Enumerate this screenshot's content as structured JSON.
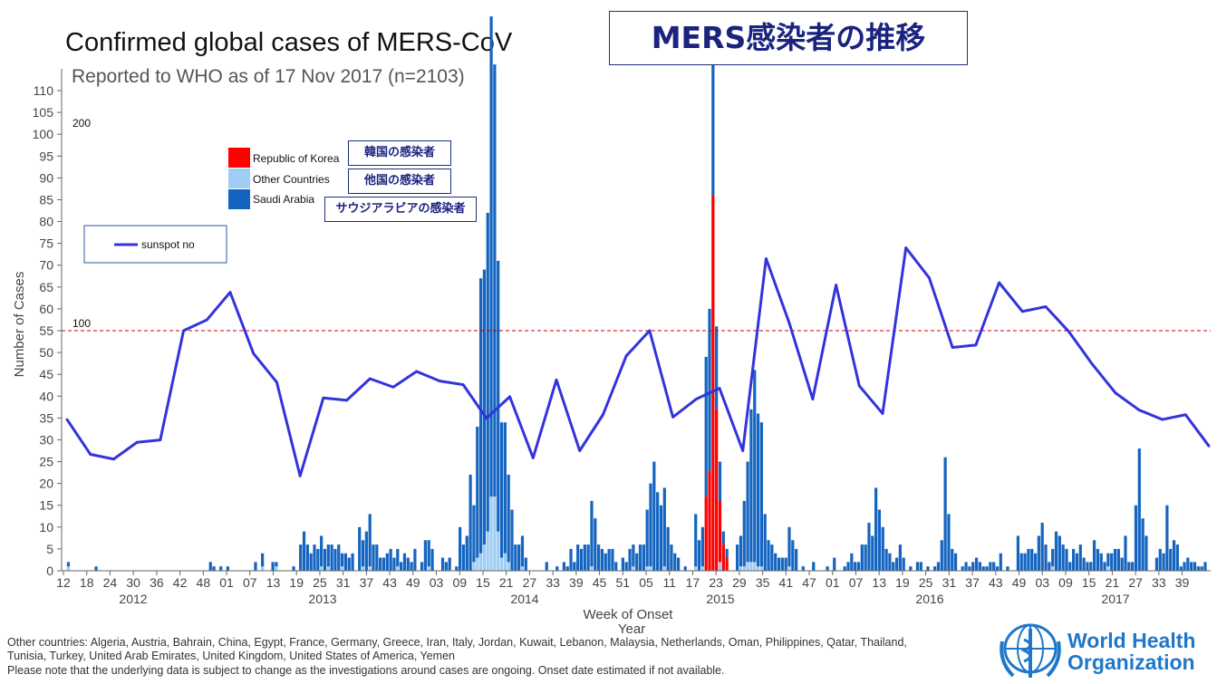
{
  "header": {
    "title": "Confirmed global cases of MERS-CoV",
    "subtitle": "Reported to WHO as of 17 Nov 2017 (n=2103)",
    "jp_title": "MERS感染者の推移"
  },
  "legend": {
    "items": [
      {
        "label": "Republic of Korea",
        "color": "#ff0000",
        "jp": "韓国の感染者"
      },
      {
        "label": "Other Countries",
        "color": "#9fcdf3",
        "jp": "他国の感染者"
      },
      {
        "label": "Saudi Arabia",
        "color": "#1565c0",
        "jp": "サウジアラビアの感染者"
      }
    ],
    "line_label": "sunspot no",
    "line_color": "#3333dd"
  },
  "footnotes": {
    "line1": "Other countries: Algeria, Austria, Bahrain, China, Egypt, France, Germany, Greece, Iran, Italy, Jordan, Kuwait, Lebanon, Malaysia, Netherlands, Oman, Philippines, Qatar, Thailand,",
    "line2": "Tunisia, Turkey, United Arab Emirates, United Kingdom, United States of America, Yemen",
    "line3": "Please note that the underlying data is subject to change as the investigations around cases are ongoing. Onset date estimated if not available."
  },
  "logo": {
    "line1": "World Health",
    "line2": "Organization"
  },
  "chart_data": {
    "type": "bar",
    "xlabel": "Week of Onset",
    "xlabel2": "Year",
    "ylabel": "Number of Cases",
    "ylim": [
      0,
      110
    ],
    "yticks": [
      0,
      5,
      10,
      15,
      20,
      25,
      30,
      35,
      40,
      45,
      50,
      55,
      60,
      65,
      70,
      75,
      80,
      85,
      90,
      95,
      100,
      105,
      110
    ],
    "secondary_axis_labels": [
      {
        "text": "200",
        "value": 200
      },
      {
        "text": "100",
        "value": 100
      }
    ],
    "secondary_ylim": [
      0,
      200
    ],
    "reference_line": {
      "secondary_value": 100,
      "color": "#cc0000",
      "style": "dashed"
    },
    "week_tick_labels": [
      "12",
      "18",
      "24",
      "30",
      "36",
      "42",
      "48",
      "01",
      "07",
      "13",
      "19",
      "25",
      "31",
      "37",
      "43",
      "49",
      "03",
      "09",
      "15",
      "21",
      "27",
      "33",
      "39",
      "45",
      "51",
      "05",
      "11",
      "17",
      "23",
      "29",
      "35",
      "41",
      "47",
      "01",
      "07",
      "13",
      "19",
      "25",
      "31",
      "37",
      "43",
      "49",
      "03",
      "09",
      "15",
      "21",
      "27",
      "33",
      "39"
    ],
    "year_labels": [
      "2012",
      "2013",
      "2014",
      "2015",
      "2016",
      "2017"
    ],
    "series": [
      {
        "name": "Saudi Arabia",
        "color": "#1565c0",
        "values": [
          0,
          1,
          0,
          0,
          0,
          0,
          0,
          0,
          0,
          1,
          0,
          0,
          0,
          0,
          0,
          0,
          0,
          0,
          0,
          0,
          0,
          0,
          0,
          0,
          0,
          0,
          0,
          0,
          0,
          0,
          0,
          0,
          0,
          0,
          0,
          0,
          0,
          0,
          0,
          0,
          0,
          0,
          2,
          1,
          0,
          1,
          0,
          1,
          0,
          0,
          0,
          0,
          0,
          0,
          0,
          2,
          0,
          3,
          0,
          0,
          2,
          1,
          0,
          0,
          0,
          0,
          1,
          0,
          6,
          9,
          6,
          4,
          6,
          5,
          7,
          5,
          5,
          6,
          5,
          6,
          3,
          4,
          3,
          4,
          0,
          10,
          6,
          9,
          12,
          6,
          6,
          3,
          3,
          4,
          5,
          3,
          4,
          2,
          4,
          3,
          2,
          5,
          0,
          2,
          7,
          6,
          5,
          0,
          0,
          3,
          2,
          3,
          0,
          1,
          10,
          6,
          8,
          22,
          13,
          30,
          63,
          63,
          73,
          110,
          99,
          62,
          31,
          30,
          20,
          14,
          6,
          6,
          7,
          3,
          0,
          0,
          0,
          0,
          0,
          2,
          0,
          0,
          1,
          0,
          2,
          1,
          5,
          2,
          6,
          5,
          6,
          6,
          15,
          12,
          6,
          5,
          4,
          5,
          5,
          2,
          0,
          3,
          2,
          5,
          5,
          4,
          6,
          6,
          13,
          19,
          25,
          18,
          15,
          18,
          10,
          6,
          4,
          3,
          0,
          1,
          0,
          0,
          12,
          7,
          9,
          32,
          37,
          30,
          19,
          9,
          3,
          2,
          0,
          0,
          6,
          7,
          15,
          23,
          35,
          44,
          35,
          33,
          13,
          7,
          6,
          4,
          3,
          3,
          3,
          9,
          7,
          5,
          0,
          1,
          0,
          0,
          2,
          0,
          0,
          0,
          1,
          0,
          3,
          0,
          0,
          1,
          2,
          4,
          2,
          2,
          6,
          6,
          11,
          8,
          19,
          14,
          10,
          5,
          4,
          2,
          3,
          6,
          3,
          0,
          1,
          0,
          2,
          2,
          0,
          1,
          0,
          1,
          2,
          7,
          26,
          13,
          5,
          4,
          0,
          1,
          2,
          1,
          2,
          3,
          2,
          1,
          1,
          2,
          2,
          1,
          4,
          0,
          1,
          0,
          0,
          8,
          4,
          4,
          5,
          5,
          4,
          8,
          11,
          6,
          2,
          4,
          9,
          8,
          6,
          5,
          2,
          5,
          4,
          6,
          3,
          2,
          2,
          7,
          5,
          4,
          2,
          3,
          4,
          5,
          5,
          3,
          8,
          2,
          2,
          15,
          28,
          12,
          8,
          0,
          0,
          3,
          5,
          4,
          15,
          5,
          7,
          6,
          1,
          2,
          3,
          2,
          2,
          1,
          1,
          2,
          0
        ]
      },
      {
        "name": "Other Countries",
        "color": "#9fcdf3",
        "values": [
          0,
          1,
          0,
          0,
          0,
          0,
          0,
          0,
          0,
          0,
          0,
          0,
          0,
          0,
          0,
          0,
          0,
          0,
          0,
          0,
          0,
          0,
          0,
          0,
          0,
          0,
          0,
          0,
          0,
          0,
          0,
          0,
          0,
          0,
          0,
          0,
          0,
          0,
          0,
          0,
          0,
          0,
          0,
          0,
          0,
          0,
          0,
          0,
          0,
          0,
          0,
          0,
          0,
          0,
          0,
          0,
          0,
          1,
          0,
          0,
          0,
          1,
          0,
          0,
          0,
          0,
          0,
          0,
          0,
          0,
          0,
          0,
          0,
          0,
          1,
          0,
          1,
          0,
          0,
          0,
          1,
          0,
          0,
          0,
          0,
          0,
          1,
          0,
          1,
          0,
          0,
          0,
          0,
          0,
          0,
          0,
          1,
          0,
          0,
          0,
          0,
          0,
          0,
          0,
          0,
          1,
          0,
          0,
          0,
          0,
          0,
          0,
          0,
          0,
          0,
          0,
          0,
          0,
          2,
          3,
          4,
          6,
          9,
          17,
          17,
          9,
          3,
          4,
          2,
          0,
          0,
          0,
          1,
          0,
          0,
          0,
          0,
          0,
          0,
          0,
          0,
          0,
          0,
          0,
          0,
          0,
          0,
          0,
          0,
          0,
          0,
          0,
          1,
          0,
          0,
          0,
          0,
          0,
          0,
          0,
          0,
          0,
          0,
          0,
          1,
          0,
          0,
          0,
          1,
          1,
          0,
          0,
          0,
          1,
          0,
          0,
          0,
          0,
          0,
          0,
          0,
          0,
          1,
          0,
          1,
          0,
          0,
          0,
          0,
          2,
          0,
          0,
          0,
          0,
          0,
          1,
          1,
          2,
          2,
          2,
          1,
          1,
          0,
          0,
          0,
          0,
          0,
          0,
          0,
          1,
          0,
          0,
          0,
          0,
          0,
          0,
          0,
          0,
          0,
          0,
          0,
          0,
          0,
          0,
          0,
          0,
          0,
          0,
          0,
          0,
          0,
          0,
          0,
          0,
          0,
          0,
          0,
          0,
          0,
          0,
          0,
          0,
          0,
          0,
          0,
          0,
          0,
          0,
          0,
          0,
          0,
          0,
          0,
          0,
          0,
          0,
          0,
          0,
          0,
          0,
          0,
          0,
          0,
          0,
          0,
          0,
          0,
          0,
          0,
          0,
          0,
          0,
          0,
          0,
          0,
          0,
          0,
          0,
          0,
          0,
          0,
          0,
          0,
          0,
          0,
          1,
          0,
          0,
          0,
          0,
          0,
          0,
          0,
          0,
          0,
          0,
          0,
          0,
          0,
          0,
          0,
          1,
          0,
          0,
          0,
          0,
          0,
          0,
          0,
          0,
          0,
          0,
          0,
          0,
          0,
          0,
          0,
          0,
          0,
          0,
          0,
          0,
          0,
          0,
          0,
          0,
          0,
          0,
          0,
          0,
          0,
          0,
          0,
          0,
          0,
          0,
          0,
          0,
          0,
          0,
          0,
          0,
          0,
          0,
          0,
          0
        ]
      },
      {
        "name": "Republic of Korea",
        "color": "#ff0000",
        "values": [
          0,
          0,
          0,
          0,
          0,
          0,
          0,
          0,
          0,
          0,
          0,
          0,
          0,
          0,
          0,
          0,
          0,
          0,
          0,
          0,
          0,
          0,
          0,
          0,
          0,
          0,
          0,
          0,
          0,
          0,
          0,
          0,
          0,
          0,
          0,
          0,
          0,
          0,
          0,
          0,
          0,
          0,
          0,
          0,
          0,
          0,
          0,
          0,
          0,
          0,
          0,
          0,
          0,
          0,
          0,
          0,
          0,
          0,
          0,
          0,
          0,
          0,
          0,
          0,
          0,
          0,
          0,
          0,
          0,
          0,
          0,
          0,
          0,
          0,
          0,
          0,
          0,
          0,
          0,
          0,
          0,
          0,
          0,
          0,
          0,
          0,
          0,
          0,
          0,
          0,
          0,
          0,
          0,
          0,
          0,
          0,
          0,
          0,
          0,
          0,
          0,
          0,
          0,
          0,
          0,
          0,
          0,
          0,
          0,
          0,
          0,
          0,
          0,
          0,
          0,
          0,
          0,
          0,
          0,
          0,
          0,
          0,
          0,
          0,
          0,
          0,
          0,
          0,
          0,
          0,
          0,
          0,
          0,
          0,
          0,
          0,
          0,
          0,
          0,
          0,
          0,
          0,
          0,
          0,
          0,
          0,
          0,
          0,
          0,
          0,
          0,
          0,
          0,
          0,
          0,
          0,
          0,
          0,
          0,
          0,
          0,
          0,
          0,
          0,
          0,
          0,
          0,
          0,
          0,
          0,
          0,
          0,
          0,
          0,
          0,
          0,
          0,
          0,
          0,
          0,
          0,
          0,
          0,
          0,
          0,
          17,
          23,
          86,
          37,
          14,
          6,
          3,
          0,
          0,
          0,
          0,
          0,
          0,
          0,
          0,
          0,
          0,
          0,
          0,
          0,
          0,
          0,
          0,
          0,
          0,
          0,
          0,
          0,
          0,
          0,
          0,
          0,
          0,
          0,
          0,
          0,
          0,
          0,
          0,
          0,
          0,
          0,
          0,
          0,
          0,
          0,
          0,
          0,
          0,
          0,
          0,
          0,
          0,
          0,
          0,
          0,
          0,
          0,
          0,
          0,
          0,
          0,
          0,
          0,
          0,
          0,
          0,
          0,
          0,
          0,
          0,
          0,
          0,
          0,
          0,
          0,
          0,
          0,
          0,
          0,
          0,
          0,
          0,
          0,
          0,
          0,
          0,
          0,
          0,
          0,
          0,
          0,
          0,
          0,
          0,
          0,
          0,
          0,
          0,
          0,
          0,
          0,
          0,
          0,
          0,
          0,
          0,
          0,
          0,
          0,
          0,
          0,
          0,
          0,
          0,
          0,
          0,
          0,
          0,
          0,
          0,
          0,
          0,
          0,
          0,
          0,
          0,
          0,
          0,
          0,
          0,
          0,
          0,
          0,
          0,
          0,
          0,
          0,
          0,
          0,
          0,
          0,
          0,
          0,
          0,
          0,
          0,
          0,
          0,
          0,
          0,
          0,
          0,
          0,
          0
        ]
      },
      {
        "name": "sunspot no",
        "type": "line",
        "color": "#3333dd",
        "y_axis": "secondary",
        "values": [
          63,
          48.5,
          46.5,
          53.5,
          54.5,
          100,
          104.5,
          116,
          90.5,
          78.5,
          39.5,
          72,
          71,
          80,
          76.5,
          83,
          79,
          77.5,
          63.5,
          72.5,
          47,
          79.5,
          50,
          65,
          89.5,
          100,
          64,
          71.5,
          76,
          50,
          130,
          103,
          71.5,
          119,
          77,
          65.5,
          134.5,
          122,
          93,
          94,
          120,
          108,
          110,
          99.5,
          86,
          74,
          67,
          63,
          65,
          52
        ]
      }
    ]
  }
}
